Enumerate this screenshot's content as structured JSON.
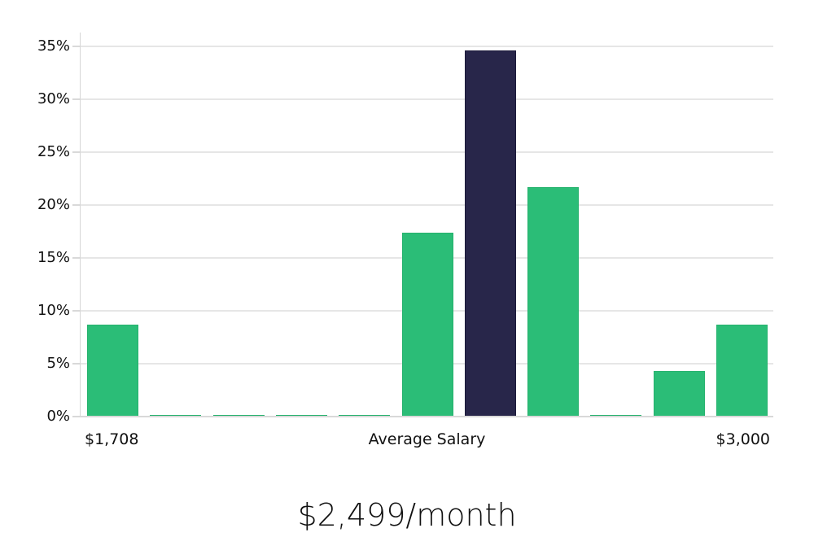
{
  "chart_data": {
    "type": "bar",
    "title": "",
    "xlabel": "Average Salary",
    "ylabel": "",
    "ylim": [
      0,
      35
    ],
    "yticks": [
      "0%",
      "5%",
      "10%",
      "15%",
      "20%",
      "25%",
      "30%",
      "35%"
    ],
    "x_range_labels": {
      "min": "$1,708",
      "max": "$3,000"
    },
    "categories": [
      "bin1",
      "bin2",
      "bin3",
      "bin4",
      "bin5",
      "bin6",
      "bin7",
      "bin8",
      "bin9",
      "bin10",
      "bin11"
    ],
    "values": [
      8.7,
      0,
      0,
      0,
      0,
      17.4,
      34.6,
      21.7,
      0,
      4.3,
      8.7
    ],
    "highlight_index": 6,
    "grid": true,
    "legend": null,
    "colors": {
      "bar": "#2bbd77",
      "highlight": "#28264a",
      "grid": "#e6e6e6"
    }
  },
  "labels": {
    "min_salary": "$1,708",
    "axis_title": "Average Salary",
    "max_salary": "$3,000",
    "summary": "$2,499/month"
  }
}
